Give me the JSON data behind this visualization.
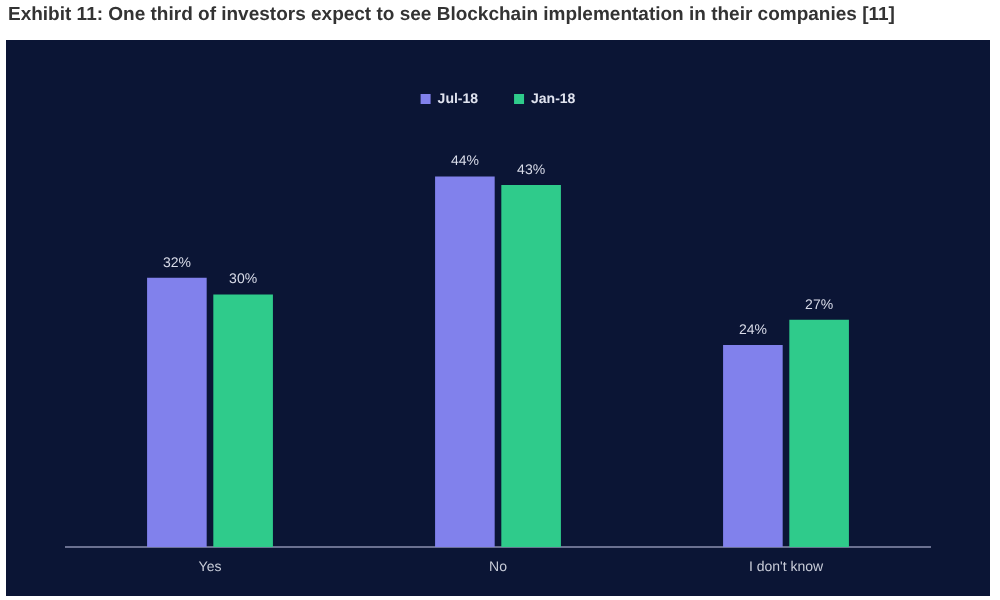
{
  "chart_data": {
    "type": "bar",
    "title": "Exhibit 11: One third of investors expect to see Blockchain implementation in their companies [11]",
    "categories": [
      "Yes",
      "No",
      "I don't know"
    ],
    "series": [
      {
        "name": "Jul-18",
        "color": "#8181ec",
        "values": [
          32,
          44,
          24
        ],
        "value_labels": [
          "32%",
          "44%",
          "24%"
        ]
      },
      {
        "name": "Jan-18",
        "color": "#2fcb8b",
        "values": [
          30,
          43,
          27
        ],
        "value_labels": [
          "30%",
          "43%",
          "27%"
        ]
      }
    ],
    "legend": "top",
    "grid": false
  }
}
